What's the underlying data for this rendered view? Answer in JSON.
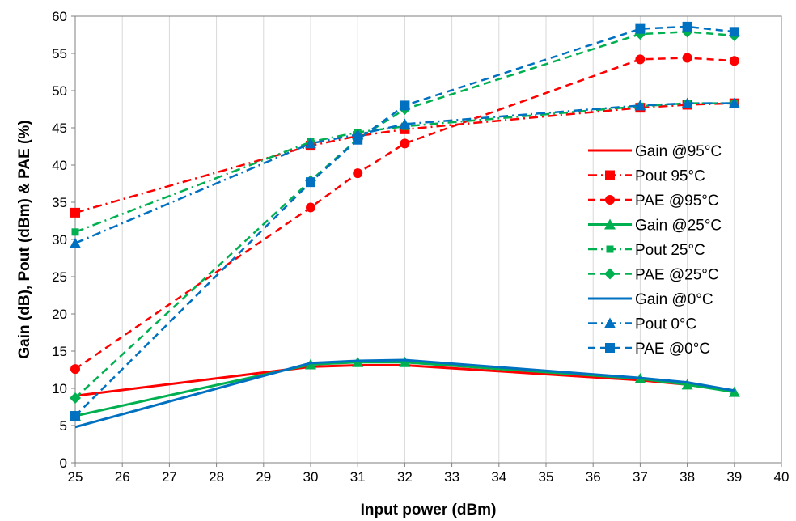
{
  "chart_data": {
    "type": "line",
    "title": "",
    "xlabel": "Input power (dBm)",
    "ylabel": "Gain (dB), Pout (dBm) & PAE (%)",
    "xlim": [
      25,
      40
    ],
    "ylim": [
      0,
      60
    ],
    "xticks": [
      25,
      26,
      27,
      28,
      29,
      30,
      31,
      32,
      33,
      34,
      35,
      36,
      37,
      38,
      39,
      40
    ],
    "yticks": [
      0,
      5,
      10,
      15,
      20,
      25,
      30,
      35,
      40,
      45,
      50,
      55,
      60
    ],
    "grid": "vertical",
    "legend_position": "right",
    "x": [
      25,
      30,
      31,
      32,
      37,
      38,
      39
    ],
    "series": [
      {
        "name": "Gain @95°C",
        "values": [
          9,
          12.9,
          13.1,
          13.1,
          11.1,
          10.5,
          9.6
        ],
        "color": "#ff0000",
        "dash": "solid",
        "marker": "none"
      },
      {
        "name": "Pout 95°C",
        "values": [
          33.6,
          42.6,
          43.9,
          44.8,
          47.7,
          48.1,
          48.3
        ],
        "color": "#ff0000",
        "dash": "dashdot",
        "marker": "square"
      },
      {
        "name": "PAE @95°C",
        "values": [
          12.6,
          34.3,
          38.9,
          42.9,
          54.2,
          54.4,
          54.0
        ],
        "color": "#ff0000",
        "dash": "dash",
        "marker": "circle"
      },
      {
        "name": "Gain @25°C",
        "values": [
          6.3,
          13.2,
          13.5,
          13.5,
          11.3,
          10.5,
          9.5
        ],
        "color": "#00b050",
        "dash": "solid",
        "marker": "triangle"
      },
      {
        "name": "Pout 25°C",
        "values": [
          31.0,
          43.1,
          44.4,
          45.2,
          47.9,
          48.3,
          48.3
        ],
        "color": "#00b050",
        "dash": "dashdot",
        "marker": "smallsquare"
      },
      {
        "name": "PAE @25°C",
        "values": [
          8.7,
          37.9,
          43.5,
          47.5,
          57.6,
          57.9,
          57.4
        ],
        "color": "#00b050",
        "dash": "dash",
        "marker": "diamond"
      },
      {
        "name": "Gain @0°C",
        "values": [
          4.8,
          13.4,
          13.7,
          13.8,
          11.4,
          10.8,
          9.7
        ],
        "color": "#0070c0",
        "dash": "solid",
        "marker": "none"
      },
      {
        "name": "Pout 0°C",
        "values": [
          29.5,
          42.9,
          44.1,
          45.5,
          48.0,
          48.3,
          48.3
        ],
        "color": "#0070c0",
        "dash": "dashdot",
        "marker": "triangle"
      },
      {
        "name": "PAE @0°C",
        "values": [
          6.3,
          37.7,
          43.4,
          48.0,
          58.3,
          58.6,
          57.9
        ],
        "color": "#0070c0",
        "dash": "dash",
        "marker": "square"
      }
    ]
  }
}
